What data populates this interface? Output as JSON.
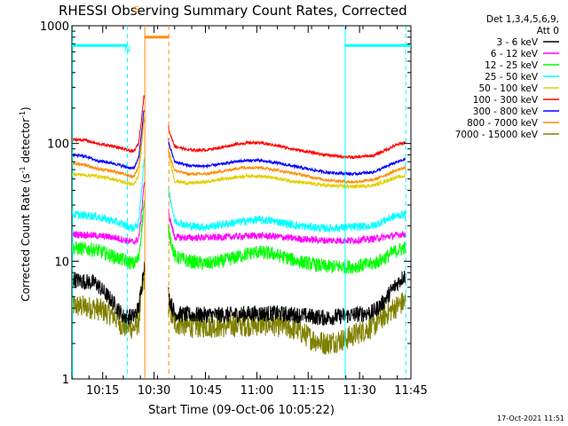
{
  "title": "RHESSI Observing Summary Count Rates, Corrected",
  "footer_timestamp": "17-Oct-2021 11:51",
  "chart_data": {
    "type": "line",
    "title": "RHESSI Observing Summary Count Rates, Corrected",
    "xlabel": "Start Time (09-Oct-06 10:05:22)",
    "ylabel_parts": [
      "Corrected Count Rate (s",
      "-1",
      " detector",
      "-1",
      ")"
    ],
    "x_unit": "minutes",
    "xlim": [
      606,
      705
    ],
    "ylim": [
      1,
      1000
    ],
    "y_scale": "log",
    "x_ticks": [
      {
        "x": 615,
        "label": "10:15"
      },
      {
        "x": 630,
        "label": "10:30"
      },
      {
        "x": 645,
        "label": "10:45"
      },
      {
        "x": 660,
        "label": "11:00"
      },
      {
        "x": 675,
        "label": "11:15"
      },
      {
        "x": 690,
        "label": "11:30"
      },
      {
        "x": 705,
        "label": "11:45"
      }
    ],
    "y_ticks": [
      {
        "y": 1000,
        "label": "1000"
      },
      {
        "y": 100,
        "label": "100"
      },
      {
        "y": 10,
        "label": "10"
      },
      {
        "y": 1,
        "label": "1"
      }
    ],
    "legend": {
      "position": "right",
      "header": [
        "Det 1,3,4,5,6,9,",
        "Att 0"
      ]
    },
    "series": [
      {
        "name": "3 - 6 keV",
        "color": "#000000",
        "noise": 0.14,
        "points": [
          [
            606,
            7
          ],
          [
            613,
            6.5
          ],
          [
            618,
            4.5
          ],
          [
            621,
            3.4
          ],
          [
            624,
            3.4
          ],
          [
            625.5,
            4
          ],
          [
            626.3,
            6
          ],
          [
            627,
            9
          ],
          [
            633.5,
            8
          ],
          [
            634.3,
            5
          ],
          [
            636,
            3.6
          ],
          [
            640,
            3.5
          ],
          [
            650,
            3.5
          ],
          [
            660,
            3.6
          ],
          [
            665,
            3.6
          ],
          [
            672,
            3.5
          ],
          [
            680,
            3.3
          ],
          [
            688,
            3.5
          ],
          [
            694,
            3.7
          ],
          [
            697,
            4.5
          ],
          [
            700,
            6
          ],
          [
            703,
            7.5
          ]
        ]
      },
      {
        "name": "6 - 12 keV",
        "color": "#ff00ff",
        "noise": 0.06,
        "points": [
          [
            606,
            17
          ],
          [
            613,
            16.5
          ],
          [
            618,
            16
          ],
          [
            624,
            14.5
          ],
          [
            625.5,
            15.5
          ],
          [
            626.3,
            25
          ],
          [
            627,
            45
          ],
          [
            633.5,
            40
          ],
          [
            634.3,
            25
          ],
          [
            636,
            16
          ],
          [
            640,
            15.8
          ],
          [
            650,
            16
          ],
          [
            660,
            16.5
          ],
          [
            665,
            16.3
          ],
          [
            672,
            15.5
          ],
          [
            680,
            15
          ],
          [
            688,
            15
          ],
          [
            694,
            15.5
          ],
          [
            697,
            16
          ],
          [
            700,
            16.5
          ],
          [
            703,
            17
          ]
        ]
      },
      {
        "name": "12 - 25 keV",
        "color": "#00ff00",
        "noise": 0.12,
        "points": [
          [
            606,
            13
          ],
          [
            613,
            12.5
          ],
          [
            618,
            11
          ],
          [
            622,
            10
          ],
          [
            624,
            9.5
          ],
          [
            625.5,
            10.5
          ],
          [
            626.3,
            18
          ],
          [
            627,
            30
          ],
          [
            633.5,
            30
          ],
          [
            634.3,
            18
          ],
          [
            636,
            11
          ],
          [
            640,
            10
          ],
          [
            645,
            9.5
          ],
          [
            650,
            10
          ],
          [
            657,
            11.5
          ],
          [
            660,
            12
          ],
          [
            665,
            11.5
          ],
          [
            672,
            10
          ],
          [
            680,
            9
          ],
          [
            688,
            9
          ],
          [
            694,
            9.5
          ],
          [
            697,
            10.5
          ],
          [
            700,
            12
          ],
          [
            703,
            13
          ]
        ]
      },
      {
        "name": "25 - 50 keV",
        "color": "#00ffff",
        "noise": 0.07,
        "points": [
          [
            606,
            25
          ],
          [
            613,
            24
          ],
          [
            618,
            22
          ],
          [
            622,
            20
          ],
          [
            624,
            19
          ],
          [
            625.5,
            21
          ],
          [
            626.3,
            40
          ],
          [
            627,
            70
          ],
          [
            633.5,
            70
          ],
          [
            634.3,
            40
          ],
          [
            636,
            22
          ],
          [
            640,
            20
          ],
          [
            645,
            19.5
          ],
          [
            650,
            20.5
          ],
          [
            657,
            22
          ],
          [
            660,
            22.5
          ],
          [
            665,
            22
          ],
          [
            672,
            20
          ],
          [
            680,
            19
          ],
          [
            688,
            19.5
          ],
          [
            694,
            20
          ],
          [
            697,
            22
          ],
          [
            700,
            24
          ],
          [
            703,
            25
          ]
        ]
      },
      {
        "name": "50 - 100 keV",
        "color": "#e0d000",
        "noise": 0.03,
        "points": [
          [
            606,
            55
          ],
          [
            613,
            53
          ],
          [
            618,
            50
          ],
          [
            622,
            46
          ],
          [
            624,
            45
          ],
          [
            625.5,
            52
          ],
          [
            626.3,
            90
          ],
          [
            627,
            160
          ],
          [
            633.5,
            140
          ],
          [
            634.3,
            80
          ],
          [
            636,
            48
          ],
          [
            640,
            46
          ],
          [
            645,
            47
          ],
          [
            650,
            50
          ],
          [
            657,
            53
          ],
          [
            660,
            53
          ],
          [
            665,
            51
          ],
          [
            672,
            47
          ],
          [
            680,
            44
          ],
          [
            688,
            43
          ],
          [
            694,
            44
          ],
          [
            697,
            47
          ],
          [
            700,
            51
          ],
          [
            703,
            53
          ]
        ]
      },
      {
        "name": "100 - 300 keV",
        "color": "#ff0000",
        "noise": 0.025,
        "points": [
          [
            606,
            108
          ],
          [
            610,
            107
          ],
          [
            613,
            100
          ],
          [
            618,
            95
          ],
          [
            622,
            88
          ],
          [
            624,
            85
          ],
          [
            625.5,
            100
          ],
          [
            626.3,
            160
          ],
          [
            627,
            250
          ],
          [
            633.5,
            230
          ],
          [
            634.3,
            130
          ],
          [
            636,
            95
          ],
          [
            640,
            88
          ],
          [
            645,
            88
          ],
          [
            650,
            93
          ],
          [
            655,
            100
          ],
          [
            660,
            102
          ],
          [
            665,
            97
          ],
          [
            672,
            88
          ],
          [
            680,
            80
          ],
          [
            688,
            76
          ],
          [
            694,
            79
          ],
          [
            697,
            86
          ],
          [
            700,
            95
          ],
          [
            703,
            102
          ]
        ]
      },
      {
        "name": "300 - 800 keV",
        "color": "#0000ff",
        "noise": 0.025,
        "points": [
          [
            606,
            80
          ],
          [
            610,
            78
          ],
          [
            613,
            72
          ],
          [
            618,
            68
          ],
          [
            622,
            63
          ],
          [
            624,
            61
          ],
          [
            625.5,
            75
          ],
          [
            626.3,
            120
          ],
          [
            627,
            190
          ],
          [
            633.5,
            180
          ],
          [
            634.3,
            100
          ],
          [
            636,
            70
          ],
          [
            640,
            65
          ],
          [
            645,
            64
          ],
          [
            650,
            67
          ],
          [
            655,
            71
          ],
          [
            660,
            72
          ],
          [
            665,
            69
          ],
          [
            672,
            63
          ],
          [
            680,
            57
          ],
          [
            688,
            55
          ],
          [
            694,
            57
          ],
          [
            697,
            62
          ],
          [
            700,
            68
          ],
          [
            703,
            73
          ]
        ]
      },
      {
        "name": "800 - 7000 keV",
        "color": "#ff8c00",
        "noise": 0.025,
        "points": [
          [
            606,
            68
          ],
          [
            610,
            66
          ],
          [
            613,
            61
          ],
          [
            618,
            58
          ],
          [
            622,
            54
          ],
          [
            624,
            52
          ],
          [
            625.5,
            64
          ],
          [
            626.3,
            100
          ],
          [
            627,
            160
          ],
          [
            633.5,
            150
          ],
          [
            634.3,
            85
          ],
          [
            636,
            59
          ],
          [
            640,
            55
          ],
          [
            645,
            55
          ],
          [
            650,
            58
          ],
          [
            655,
            62
          ],
          [
            660,
            63
          ],
          [
            665,
            60
          ],
          [
            672,
            55
          ],
          [
            680,
            49
          ],
          [
            688,
            47
          ],
          [
            694,
            49
          ],
          [
            697,
            53
          ],
          [
            700,
            58
          ],
          [
            703,
            62
          ]
        ]
      },
      {
        "name": "7000 - 15000 keV",
        "color": "#808000",
        "noise": 0.2,
        "points": [
          [
            606,
            4.2
          ],
          [
            613,
            4
          ],
          [
            618,
            3.5
          ],
          [
            621,
            2.8
          ],
          [
            624,
            2.7
          ],
          [
            625.5,
            3
          ],
          [
            626.3,
            5
          ],
          [
            627,
            7
          ],
          [
            633.5,
            6
          ],
          [
            634.3,
            4
          ],
          [
            636,
            3
          ],
          [
            640,
            2.8
          ],
          [
            650,
            2.8
          ],
          [
            660,
            2.9
          ],
          [
            665,
            2.9
          ],
          [
            672,
            2.6
          ],
          [
            676,
            2.2
          ],
          [
            680,
            2
          ],
          [
            686,
            2.2
          ],
          [
            690,
            2.5
          ],
          [
            694,
            2.8
          ],
          [
            697,
            3.4
          ],
          [
            700,
            4
          ],
          [
            703,
            4.5
          ]
        ]
      }
    ],
    "vertical_lines": [
      {
        "x": 606.2,
        "color": "#00ffff",
        "style": "solid"
      },
      {
        "x": 622.2,
        "color": "#00ffff",
        "style": "dashed"
      },
      {
        "x": 627.3,
        "color": "#ff8c00",
        "style": "solid"
      },
      {
        "x": 634.3,
        "color": "#ff8c00",
        "style": "dashed"
      },
      {
        "x": 685.8,
        "color": "#00ffff",
        "style": "solid"
      },
      {
        "x": 703.5,
        "color": "#00ffff",
        "style": "dashed"
      }
    ],
    "bars": [
      {
        "x0": 606,
        "x1": 622.2,
        "y": 680,
        "color": "#00ffff"
      },
      {
        "x0": 627.3,
        "x1": 634.3,
        "y": 800,
        "color": "#ff8c00"
      },
      {
        "x0": 685.8,
        "x1": 705,
        "y": 680,
        "color": "#00ffff"
      }
    ],
    "flags": [
      {
        "x": 622.2,
        "y": 600,
        "text": "N",
        "color": "#00ffff"
      },
      {
        "x": 624.8,
        "y": 1300,
        "text": "S",
        "color": "#ff8c00"
      }
    ]
  }
}
